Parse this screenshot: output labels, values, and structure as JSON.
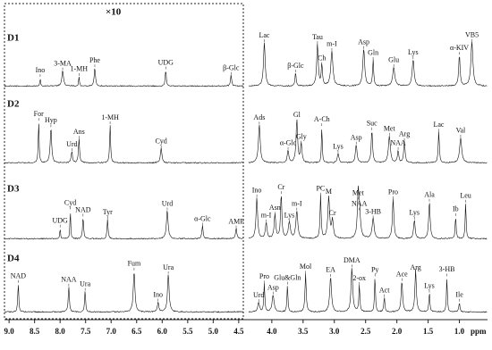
{
  "chart_data": {
    "type": "nmr-stack",
    "scale_label": "×10",
    "x_unit": "ppm",
    "panels": [
      {
        "xlim": [
          9.09,
          4.41
        ],
        "xticks": [
          {
            "value": 9,
            "label": "9.0"
          },
          8.5,
          {
            "value": 8,
            "label": "8.0"
          },
          7.5,
          {
            "value": 7,
            "label": "7.0"
          },
          6.5,
          {
            "value": 6,
            "label": "6.0"
          },
          5.5,
          {
            "value": 5,
            "label": "5.0"
          },
          4.5
        ]
      },
      {
        "xlim": [
          4.37,
          0.55
        ],
        "xticks": [
          {
            "value": 4,
            "label": "4.0"
          },
          3.5,
          {
            "value": 3,
            "label": "3.0"
          },
          2.5,
          {
            "value": 2,
            "label": "2.0"
          },
          1.5,
          {
            "value": 1,
            "label": "1.0"
          }
        ]
      }
    ],
    "spectra": [
      {
        "name": "D1",
        "annotations": [
          {
            "text": "Ino",
            "x": 8.39
          },
          {
            "text": "3-MA",
            "x": 7.95
          },
          {
            "text": "1-MH",
            "x": 7.63
          },
          {
            "text": "Phe",
            "x": 7.32
          },
          {
            "text": "UDG",
            "x": 5.93
          },
          {
            "text": "β-Glc",
            "x": 4.65
          },
          {
            "text": "Lac",
            "x": 4.12
          },
          {
            "text": "β-Glc",
            "x": 3.62
          },
          {
            "text": "Ch",
            "x": 3.2
          },
          {
            "text": "Tau",
            "x": 3.27
          },
          {
            "text": "m-I",
            "x": 3.04
          },
          {
            "text": "Asp",
            "x": 2.53
          },
          {
            "text": "Gln",
            "x": 2.38
          },
          {
            "text": "Glu",
            "x": 2.05
          },
          {
            "text": "Lys",
            "x": 1.74
          },
          {
            "text": "α-KIV",
            "x": 1.0
          },
          {
            "text": "VB5",
            "x": 0.8
          }
        ]
      },
      {
        "name": "D2",
        "annotations": [
          {
            "text": "For",
            "x": 8.42
          },
          {
            "text": "Hyp",
            "x": 8.18
          },
          {
            "text": "Urd",
            "x": 7.77
          },
          {
            "text": "Ans",
            "x": 7.63
          },
          {
            "text": "1-MH",
            "x": 7.02
          },
          {
            "text": "Cyd",
            "x": 6.02
          },
          {
            "text": "Ads",
            "x": 4.2
          },
          {
            "text": "α-Glc",
            "x": 3.74
          },
          {
            "text": "Gl",
            "x": 3.6
          },
          {
            "text": "Gly",
            "x": 3.53
          },
          {
            "text": "A-Ch",
            "x": 3.2
          },
          {
            "text": "Lys",
            "x": 2.94
          },
          {
            "text": "Asp",
            "x": 2.65
          },
          {
            "text": "Suc",
            "x": 2.4
          },
          {
            "text": "Met",
            "x": 2.12
          },
          {
            "text": "NAA",
            "x": 1.98
          },
          {
            "text": "Arg",
            "x": 1.88
          },
          {
            "text": "Lac",
            "x": 1.33
          },
          {
            "text": "Val",
            "x": 0.98
          }
        ]
      },
      {
        "name": "D3",
        "annotations": [
          {
            "text": "UDG",
            "x": 8.0
          },
          {
            "text": "Cyd",
            "x": 7.8
          },
          {
            "text": "NAD",
            "x": 7.55
          },
          {
            "text": "Tyr",
            "x": 7.07
          },
          {
            "text": "Urd",
            "x": 5.9
          },
          {
            "text": "α-Glc",
            "x": 5.21
          },
          {
            "text": "AMP",
            "x": 4.55
          },
          {
            "text": "Ino",
            "x": 4.24
          },
          {
            "text": "m-I",
            "x": 4.09
          },
          {
            "text": "Asn",
            "x": 3.95
          },
          {
            "text": "Cr",
            "x": 3.85
          },
          {
            "text": "Lys",
            "x": 3.72
          },
          {
            "text": "m-I",
            "x": 3.6
          },
          {
            "text": "PC",
            "x": 3.22
          },
          {
            "text": "M",
            "x": 3.09
          },
          {
            "text": "Cr",
            "x": 3.03
          },
          {
            "text": "NAA",
            "x": 2.6
          },
          {
            "text": "Met",
            "x": 2.62
          },
          {
            "text": "3-HB",
            "x": 2.38
          },
          {
            "text": "Pro",
            "x": 2.06
          },
          {
            "text": "Lys",
            "x": 1.72
          },
          {
            "text": "Ala",
            "x": 1.48
          },
          {
            "text": "Ib",
            "x": 1.06
          },
          {
            "text": "Leu",
            "x": 0.9
          }
        ]
      },
      {
        "name": "D4",
        "annotations": [
          {
            "text": "NAD",
            "x": 8.82
          },
          {
            "text": "NAA",
            "x": 7.83
          },
          {
            "text": "Ura",
            "x": 7.51
          },
          {
            "text": "Fum",
            "x": 6.55
          },
          {
            "text": "Ino",
            "x": 6.08
          },
          {
            "text": "Ura",
            "x": 5.88
          },
          {
            "text": "Urd",
            "x": 4.21
          },
          {
            "text": "Pro",
            "x": 4.12
          },
          {
            "text": "Asp",
            "x": 3.98
          },
          {
            "text": "Glu&Gln",
            "x": 3.75
          },
          {
            "text": "Mol",
            "x": 3.46
          },
          {
            "text": "EA",
            "x": 3.06
          },
          {
            "text": "DMA",
            "x": 2.72
          },
          {
            "text": "2-ox",
            "x": 2.6
          },
          {
            "text": "Py",
            "x": 2.35
          },
          {
            "text": "Act",
            "x": 2.2
          },
          {
            "text": "Ace",
            "x": 1.92
          },
          {
            "text": "Arg",
            "x": 1.7
          },
          {
            "text": "Lys",
            "x": 1.48
          },
          {
            "text": "3-HB",
            "x": 1.2
          },
          {
            "text": "Ile",
            "x": 1.0
          }
        ]
      }
    ]
  }
}
